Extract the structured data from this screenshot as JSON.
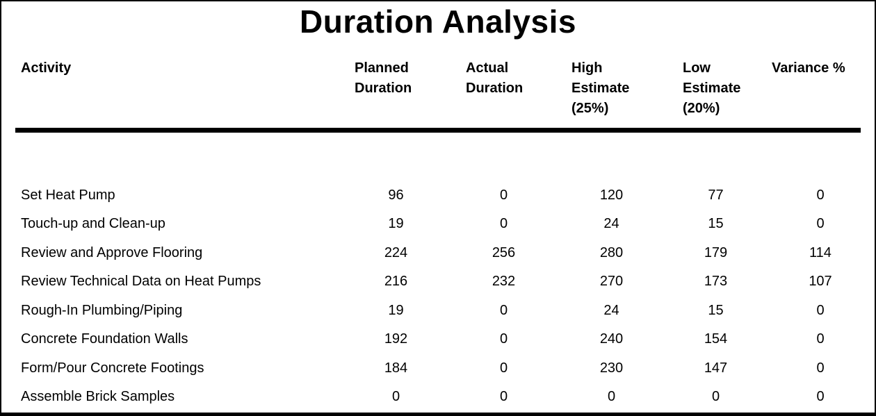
{
  "report": {
    "title": "Duration Analysis"
  },
  "table": {
    "headers": {
      "activity": "Activity",
      "planned": "Planned\nDuration",
      "actual": "Actual\nDuration",
      "high": "High\nEstimate\n(25%)",
      "low": "Low\nEstimate\n(20%)",
      "variance": "Variance %"
    },
    "rows": [
      {
        "activity": "Set Heat Pump",
        "planned": 96,
        "actual": 0,
        "high": 120,
        "low": 77,
        "variance": 0
      },
      {
        "activity": "Touch-up and Clean-up",
        "planned": 19,
        "actual": 0,
        "high": 24,
        "low": 15,
        "variance": 0
      },
      {
        "activity": "Review and Approve Flooring",
        "planned": 224,
        "actual": 256,
        "high": 280,
        "low": 179,
        "variance": 114
      },
      {
        "activity": "Review Technical Data on Heat Pumps",
        "planned": 216,
        "actual": 232,
        "high": 270,
        "low": 173,
        "variance": 107
      },
      {
        "activity": "Rough-In Plumbing/Piping",
        "planned": 19,
        "actual": 0,
        "high": 24,
        "low": 15,
        "variance": 0
      },
      {
        "activity": "Concrete Foundation Walls",
        "planned": 192,
        "actual": 0,
        "high": 240,
        "low": 154,
        "variance": 0
      },
      {
        "activity": "Form/Pour Concrete Footings",
        "planned": 184,
        "actual": 0,
        "high": 230,
        "low": 147,
        "variance": 0
      },
      {
        "activity": "Assemble Brick Samples",
        "planned": 0,
        "actual": 0,
        "high": 0,
        "low": 0,
        "variance": 0
      }
    ],
    "colors": {
      "text": "#000000",
      "background": "#ffffff",
      "rule": "#000000",
      "border": "#000000"
    }
  }
}
